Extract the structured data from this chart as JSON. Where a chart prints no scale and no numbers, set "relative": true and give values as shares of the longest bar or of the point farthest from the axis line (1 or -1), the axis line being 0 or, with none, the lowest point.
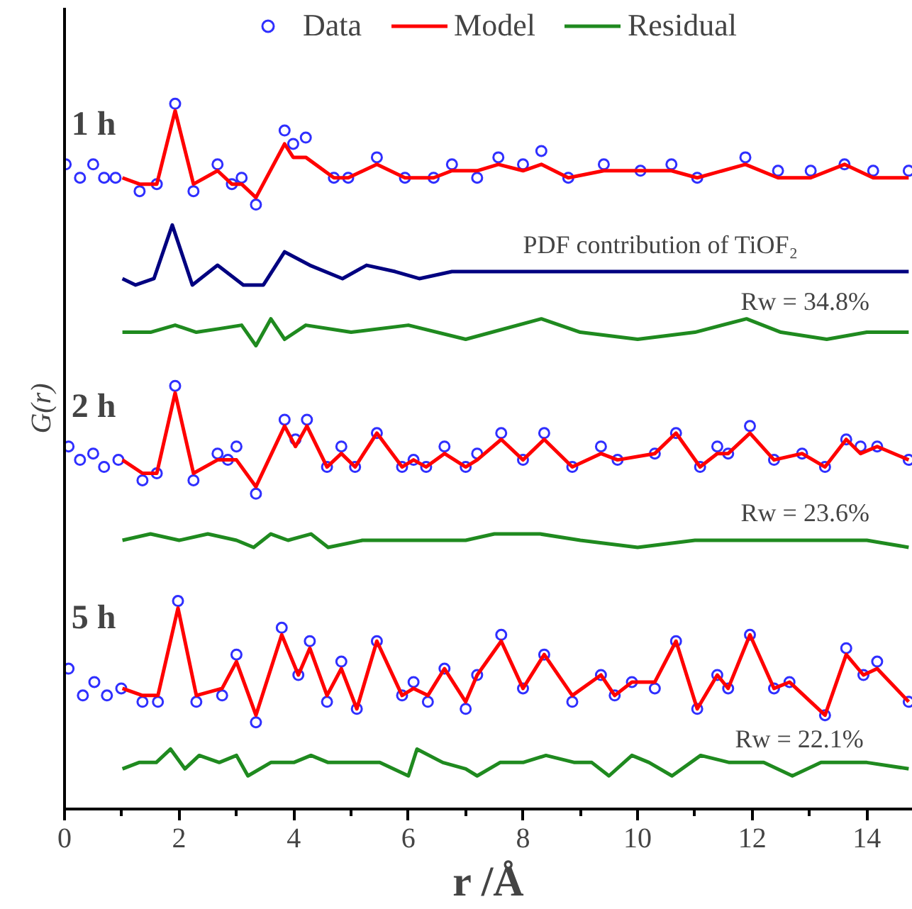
{
  "chart_data": {
    "type": "line",
    "relative": true,
    "xlabel": "r /Å",
    "ylabel": "G(r)",
    "xlim": [
      0,
      14.8
    ],
    "xticks": [
      0,
      2,
      4,
      6,
      8,
      10,
      12,
      14
    ],
    "grid": false,
    "legend": "top",
    "series": [
      {
        "name": "Data",
        "type": "scatter",
        "marker": "circle",
        "color": "#2f2fff",
        "x": [
          0.02,
          0.27,
          0.5,
          0.69,
          0.89,
          1.31,
          1.61,
          1.93,
          2.25,
          2.67,
          2.92,
          3.09,
          3.34,
          3.84,
          3.99,
          4.21,
          4.7,
          4.95,
          5.45,
          5.94,
          6.44,
          6.76,
          7.2,
          7.57,
          8.0,
          8.32,
          8.79,
          9.41,
          10.05,
          10.59,
          11.04,
          11.88,
          12.45,
          13.02,
          13.61,
          14.11,
          14.73
        ],
        "values": [
          0.914,
          0.895,
          0.914,
          0.895,
          0.895,
          0.876,
          0.886,
          1.0,
          0.876,
          0.914,
          0.886,
          0.895,
          0.857,
          0.962,
          0.943,
          0.952,
          0.895,
          0.895,
          0.924,
          0.895,
          0.895,
          0.914,
          0.895,
          0.924,
          0.914,
          0.933,
          0.895,
          0.914,
          0.905,
          0.914,
          0.895,
          0.924,
          0.905,
          0.905,
          0.914,
          0.905,
          0.905
        ]
      },
      {
        "name": "Model",
        "color": "#ff0000",
        "x": [
          1.01,
          1.31,
          1.61,
          1.93,
          2.25,
          2.67,
          2.92,
          3.09,
          3.34,
          3.84,
          3.99,
          4.21,
          4.7,
          4.95,
          5.45,
          5.94,
          6.44,
          6.76,
          7.2,
          7.57,
          8.0,
          8.32,
          8.79,
          9.41,
          10.05,
          10.59,
          11.04,
          11.88,
          12.45,
          13.02,
          13.61,
          14.11,
          14.73
        ],
        "values": [
          0.895,
          0.886,
          0.886,
          0.99,
          0.886,
          0.905,
          0.886,
          0.886,
          0.867,
          0.943,
          0.924,
          0.924,
          0.895,
          0.895,
          0.914,
          0.895,
          0.895,
          0.905,
          0.905,
          0.914,
          0.905,
          0.914,
          0.895,
          0.905,
          0.905,
          0.905,
          0.895,
          0.914,
          0.895,
          0.895,
          0.914,
          0.895,
          0.895
        ]
      },
      {
        "color": "#000080",
        "x": [
          1.01,
          1.24,
          1.56,
          1.88,
          2.23,
          2.67,
          3.12,
          3.47,
          3.84,
          4.28,
          4.85,
          5.27,
          5.77,
          6.19,
          6.76,
          9.0,
          12.0,
          14.73
        ],
        "values": [
          0.752,
          0.743,
          0.752,
          0.828,
          0.743,
          0.771,
          0.743,
          0.743,
          0.79,
          0.771,
          0.752,
          0.771,
          0.762,
          0.752,
          0.762,
          0.762,
          0.762,
          0.762
        ]
      },
      {
        "name": "Residual",
        "color": "#1f8a1f",
        "x": [
          1.01,
          1.5,
          1.93,
          2.3,
          2.7,
          3.09,
          3.34,
          3.6,
          3.84,
          4.21,
          5.0,
          6.0,
          7.0,
          8.32,
          9.0,
          10.0,
          11.0,
          11.9,
          12.5,
          13.3,
          14.0,
          14.73
        ],
        "values": [
          0.676,
          0.676,
          0.686,
          0.676,
          0.681,
          0.686,
          0.657,
          0.695,
          0.666,
          0.686,
          0.676,
          0.686,
          0.666,
          0.695,
          0.676,
          0.666,
          0.676,
          0.695,
          0.676,
          0.666,
          0.676,
          0.676
        ]
      },
      {
        "type": "scatter",
        "marker": "circle",
        "color": "#2f2fff",
        "x": [
          0.07,
          0.27,
          0.5,
          0.69,
          0.94,
          1.36,
          1.61,
          1.93,
          2.25,
          2.67,
          2.85,
          3.0,
          3.34,
          3.84,
          4.03,
          4.23,
          4.58,
          4.83,
          5.07,
          5.45,
          5.89,
          6.09,
          6.31,
          6.63,
          7.0,
          7.2,
          7.62,
          8.0,
          8.37,
          8.86,
          9.36,
          9.65,
          10.3,
          10.67,
          11.09,
          11.39,
          11.58,
          11.96,
          12.38,
          12.87,
          13.27,
          13.64,
          13.89,
          14.18,
          14.73
        ],
        "values": [
          0.514,
          0.495,
          0.504,
          0.485,
          0.495,
          0.466,
          0.476,
          0.6,
          0.466,
          0.504,
          0.495,
          0.514,
          0.447,
          0.552,
          0.524,
          0.552,
          0.485,
          0.514,
          0.485,
          0.533,
          0.485,
          0.495,
          0.485,
          0.514,
          0.485,
          0.504,
          0.533,
          0.495,
          0.533,
          0.485,
          0.514,
          0.495,
          0.504,
          0.533,
          0.485,
          0.514,
          0.504,
          0.543,
          0.495,
          0.504,
          0.485,
          0.524,
          0.514,
          0.514,
          0.495
        ]
      },
      {
        "color": "#ff0000",
        "x": [
          1.01,
          1.36,
          1.61,
          1.93,
          2.25,
          2.67,
          2.85,
          3.0,
          3.34,
          3.84,
          4.03,
          4.23,
          4.58,
          4.83,
          5.07,
          5.45,
          5.89,
          6.09,
          6.31,
          6.63,
          7.0,
          7.2,
          7.62,
          8.0,
          8.37,
          8.86,
          9.36,
          9.65,
          10.3,
          10.67,
          11.09,
          11.39,
          11.58,
          11.96,
          12.38,
          12.87,
          13.27,
          13.64,
          13.89,
          14.18,
          14.73
        ],
        "values": [
          0.495,
          0.476,
          0.476,
          0.59,
          0.476,
          0.495,
          0.495,
          0.495,
          0.457,
          0.543,
          0.514,
          0.543,
          0.485,
          0.504,
          0.485,
          0.533,
          0.485,
          0.495,
          0.485,
          0.504,
          0.485,
          0.495,
          0.524,
          0.495,
          0.524,
          0.485,
          0.504,
          0.495,
          0.504,
          0.533,
          0.485,
          0.504,
          0.504,
          0.533,
          0.495,
          0.504,
          0.485,
          0.524,
          0.504,
          0.514,
          0.495
        ]
      },
      {
        "color": "#1f8a1f",
        "x": [
          1.01,
          1.5,
          2.0,
          2.5,
          3.0,
          3.3,
          3.6,
          3.9,
          4.3,
          4.6,
          5.2,
          6.0,
          7.0,
          7.5,
          8.3,
          9.0,
          10.0,
          11.0,
          12.0,
          13.0,
          14.0,
          14.73
        ],
        "values": [
          0.381,
          0.39,
          0.381,
          0.39,
          0.381,
          0.371,
          0.39,
          0.381,
          0.39,
          0.371,
          0.381,
          0.381,
          0.381,
          0.39,
          0.39,
          0.381,
          0.371,
          0.381,
          0.381,
          0.381,
          0.381,
          0.371
        ]
      },
      {
        "type": "scatter",
        "marker": "circle",
        "color": "#2f2fff",
        "x": [
          0.07,
          0.32,
          0.52,
          0.74,
          0.99,
          1.36,
          1.63,
          1.98,
          2.3,
          2.75,
          3.0,
          3.34,
          3.79,
          4.08,
          4.28,
          4.58,
          4.83,
          5.1,
          5.45,
          5.89,
          6.09,
          6.34,
          6.63,
          7.0,
          7.2,
          7.62,
          8.0,
          8.37,
          8.86,
          9.36,
          9.6,
          9.9,
          10.3,
          10.67,
          11.04,
          11.39,
          11.58,
          11.96,
          12.38,
          12.65,
          13.27,
          13.64,
          13.94,
          14.18,
          14.73
        ],
        "values": [
          0.199,
          0.161,
          0.18,
          0.161,
          0.171,
          0.152,
          0.152,
          0.295,
          0.152,
          0.161,
          0.219,
          0.123,
          0.257,
          0.19,
          0.238,
          0.152,
          0.209,
          0.142,
          0.238,
          0.161,
          0.18,
          0.152,
          0.199,
          0.142,
          0.19,
          0.247,
          0.171,
          0.219,
          0.152,
          0.19,
          0.161,
          0.18,
          0.171,
          0.238,
          0.142,
          0.19,
          0.171,
          0.247,
          0.171,
          0.18,
          0.133,
          0.228,
          0.19,
          0.209,
          0.152
        ]
      },
      {
        "color": "#ff0000",
        "x": [
          1.01,
          1.36,
          1.63,
          1.98,
          2.3,
          2.75,
          3.0,
          3.34,
          3.79,
          4.08,
          4.28,
          4.58,
          4.83,
          5.1,
          5.45,
          5.89,
          6.09,
          6.34,
          6.63,
          7.0,
          7.2,
          7.62,
          8.0,
          8.37,
          8.86,
          9.36,
          9.6,
          9.9,
          10.3,
          10.67,
          11.04,
          11.39,
          11.58,
          11.96,
          12.38,
          12.65,
          13.27,
          13.64,
          13.94,
          14.18,
          14.73
        ],
        "values": [
          0.171,
          0.161,
          0.161,
          0.285,
          0.161,
          0.171,
          0.209,
          0.133,
          0.247,
          0.19,
          0.228,
          0.161,
          0.199,
          0.142,
          0.238,
          0.161,
          0.171,
          0.161,
          0.199,
          0.152,
          0.19,
          0.238,
          0.171,
          0.219,
          0.161,
          0.19,
          0.161,
          0.18,
          0.18,
          0.238,
          0.142,
          0.19,
          0.171,
          0.247,
          0.171,
          0.18,
          0.133,
          0.219,
          0.19,
          0.199,
          0.152
        ]
      },
      {
        "color": "#1f8a1f",
        "x": [
          1.01,
          1.3,
          1.6,
          1.85,
          2.1,
          2.35,
          2.7,
          3.0,
          3.2,
          3.6,
          4.0,
          4.3,
          4.6,
          5.0,
          5.5,
          6.0,
          6.15,
          6.6,
          7.0,
          7.2,
          7.6,
          8.0,
          8.4,
          8.9,
          9.2,
          9.5,
          9.9,
          10.2,
          10.6,
          11.1,
          11.6,
          12.2,
          12.7,
          13.2,
          13.5,
          14.0,
          14.73
        ],
        "values": [
          0.057,
          0.066,
          0.066,
          0.085,
          0.057,
          0.076,
          0.066,
          0.076,
          0.047,
          0.066,
          0.066,
          0.076,
          0.066,
          0.066,
          0.066,
          0.047,
          0.085,
          0.066,
          0.057,
          0.047,
          0.066,
          0.066,
          0.076,
          0.066,
          0.066,
          0.047,
          0.076,
          0.066,
          0.047,
          0.076,
          0.066,
          0.066,
          0.047,
          0.066,
          0.066,
          0.066,
          0.057
        ]
      }
    ],
    "annotations": [
      "1 h",
      "2 h",
      "5 h",
      "PDF contribution of TiOF₂",
      "Rw = 34.8%",
      "Rw = 23.6%",
      "Rw = 22.1%"
    ]
  }
}
